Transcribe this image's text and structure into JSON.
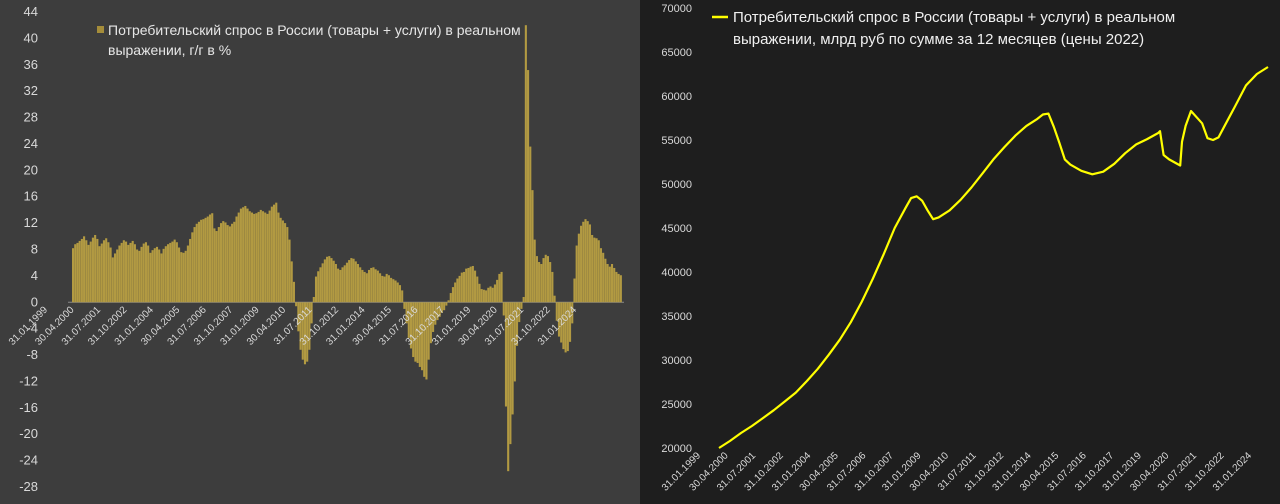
{
  "chart_data": [
    {
      "type": "bar",
      "legend": [
        "Потребительский спрос в России (товары + услуги) в реальном",
        "выражении, г/г в %"
      ],
      "legend_position": "top-left",
      "ylim": [
        -28,
        44
      ],
      "y_ticks": [
        "44",
        "40",
        "36",
        "32",
        "28",
        "24",
        "20",
        "16",
        "12",
        "8",
        "4",
        "0",
        "-4",
        "-8",
        "-12",
        "-16",
        "-20",
        "-24",
        "-28"
      ],
      "x_ticks": [
        "31.01.1999",
        "30.04.2000",
        "31.07.2001",
        "31.10.2002",
        "31.01.2004",
        "30.04.2005",
        "31.07.2006",
        "31.10.2007",
        "31.01.2009",
        "30.04.2010",
        "31.07.2011",
        "31.10.2012",
        "31.01.2014",
        "30.04.2015",
        "31.07.2016",
        "31.10.2017",
        "31.01.2019",
        "30.04.2020",
        "31.07.2021",
        "31.10.2022",
        "31.01.2024"
      ],
      "grid": false,
      "colors": {
        "bar": "#a58d3a",
        "bar_fill": "#b29a42",
        "background": "#3d3d3d"
      },
      "series": [
        {
          "name": "Потребительский спрос в России (товары + услуги) в реальном выражении, г/г в %",
          "x_start": "2000-02",
          "frequency": "monthly",
          "values": [
            8.2,
            8.8,
            9.0,
            9.3,
            9.6,
            10.0,
            9.4,
            8.7,
            9.2,
            9.8,
            10.2,
            9.6,
            8.5,
            8.9,
            9.4,
            9.7,
            9.1,
            8.3,
            6.8,
            7.4,
            8.0,
            8.6,
            9.0,
            9.4,
            9.2,
            8.7,
            9.0,
            9.3,
            8.8,
            8.0,
            7.8,
            8.4,
            8.9,
            9.1,
            8.6,
            7.5,
            7.9,
            8.2,
            8.4,
            8.0,
            7.4,
            8.1,
            8.5,
            8.8,
            9.0,
            9.2,
            9.5,
            9.1,
            8.3,
            7.6,
            7.5,
            7.8,
            8.6,
            9.6,
            10.6,
            11.4,
            11.9,
            12.2,
            12.5,
            12.6,
            12.8,
            13.0,
            13.3,
            13.5,
            11.2,
            10.8,
            11.4,
            12.0,
            12.3,
            12.1,
            11.7,
            11.5,
            11.9,
            12.2,
            13.0,
            13.6,
            14.2,
            14.4,
            14.6,
            14.2,
            13.8,
            13.6,
            13.4,
            13.5,
            13.7,
            14.0,
            13.8,
            13.6,
            13.4,
            13.9,
            14.5,
            14.8,
            15.1,
            13.6,
            12.8,
            12.4,
            12.0,
            11.4,
            9.5,
            6.2,
            3.1,
            -0.6,
            -4.4,
            -7.2,
            -8.7,
            -9.4,
            -9.0,
            -7.2,
            -3.2,
            0.8,
            3.9,
            4.7,
            5.3,
            5.9,
            6.5,
            6.9,
            7.0,
            6.7,
            6.3,
            5.8,
            5.1,
            4.9,
            5.3,
            5.6,
            6.0,
            6.4,
            6.7,
            6.6,
            6.2,
            5.8,
            5.3,
            4.9,
            4.6,
            4.4,
            4.9,
            5.2,
            5.3,
            5.0,
            4.8,
            4.4,
            4.0,
            3.9,
            4.3,
            4.1,
            3.7,
            3.5,
            3.3,
            3.0,
            2.6,
            1.8,
            -1.0,
            -3.2,
            -5.4,
            -7.0,
            -8.3,
            -9.0,
            -9.2,
            -9.8,
            -10.3,
            -11.3,
            -11.7,
            -8.7,
            -6.2,
            -4.5,
            -3.4,
            -2.7,
            -2.2,
            -1.6,
            -1.2,
            -0.5,
            0.3,
            1.4,
            2.3,
            3.0,
            3.6,
            4.0,
            4.5,
            4.6,
            5.1,
            5.2,
            5.4,
            5.5,
            4.8,
            3.9,
            2.8,
            2.0,
            1.9,
            1.8,
            2.2,
            2.4,
            2.2,
            2.7,
            3.4,
            4.3,
            4.6,
            -2.0,
            -15.8,
            -25.6,
            -21.5,
            -17.0,
            -12.0,
            -6.6,
            -3.0,
            -1.0,
            0.8,
            42.0,
            35.2,
            23.6,
            17.0,
            9.5,
            7.0,
            6.1,
            5.8,
            6.7,
            7.2,
            7.0,
            6.1,
            4.6,
            1.0,
            -2.8,
            -5.2,
            -6.1,
            -7.1,
            -7.6,
            -7.4,
            -6.0,
            -3.2,
            3.6,
            8.6,
            10.4,
            11.6,
            12.2,
            12.6,
            12.3,
            11.8,
            10.2,
            9.8,
            9.7,
            9.4,
            8.2,
            7.5,
            6.6,
            5.8,
            5.4,
            5.8,
            5.2,
            4.6,
            4.3,
            4.1
          ]
        }
      ]
    },
    {
      "type": "line",
      "legend": [
        "Потребительский спрос в России (товары + услуги) в реальном",
        "выражении, млрд руб по сумме за 12 месяцев (цены 2022)"
      ],
      "legend_position": "top-left",
      "ylim": [
        20000,
        70000
      ],
      "y_ticks": [
        "70000",
        "65000",
        "60000",
        "55000",
        "50000",
        "45000",
        "40000",
        "35000",
        "30000",
        "25000",
        "20000"
      ],
      "x_ticks": [
        "31.01.1999",
        "30.04.2000",
        "31.07.2001",
        "31.10.2002",
        "31.01.2004",
        "30.04.2005",
        "31.07.2006",
        "31.10.2007",
        "31.01.2009",
        "30.04.2010",
        "31.07.2011",
        "31.10.2012",
        "31.01.2014",
        "30.04.2015",
        "31.07.2016",
        "31.10.2017",
        "31.01.2019",
        "30.04.2020",
        "31.07.2021",
        "31.10.2022",
        "31.01.2024"
      ],
      "grid": false,
      "colors": {
        "line": "#ffff00",
        "background": "#1e1e1e"
      },
      "series": [
        {
          "name": "Потребительский спрос в России (товары + услуги) в реальном выражении, млрд руб по сумме за 12 месяцев (цены 2022)",
          "x": [
            "2000-01",
            "2000-07",
            "2001-01",
            "2001-07",
            "2002-01",
            "2002-07",
            "2003-01",
            "2003-07",
            "2004-01",
            "2004-07",
            "2005-01",
            "2005-07",
            "2006-01",
            "2006-07",
            "2007-01",
            "2007-07",
            "2008-01",
            "2008-07",
            "2008-10",
            "2009-01",
            "2009-04",
            "2009-07",
            "2009-10",
            "2010-01",
            "2010-07",
            "2011-01",
            "2011-07",
            "2012-01",
            "2012-07",
            "2013-01",
            "2013-07",
            "2014-01",
            "2014-07",
            "2014-10",
            "2015-01",
            "2015-04",
            "2015-07",
            "2015-10",
            "2016-01",
            "2016-07",
            "2017-01",
            "2017-07",
            "2018-01",
            "2018-07",
            "2019-01",
            "2019-07",
            "2020-01",
            "2020-02",
            "2020-04",
            "2020-07",
            "2021-01",
            "2021-02",
            "2021-04",
            "2021-07",
            "2022-01",
            "2022-04",
            "2022-07",
            "2022-10",
            "2023-01",
            "2023-07",
            "2024-01",
            "2024-07",
            "2025-01"
          ],
          "values": [
            20000,
            20800,
            21700,
            22500,
            23400,
            24300,
            25300,
            26300,
            27600,
            29000,
            30600,
            32300,
            34300,
            36600,
            39200,
            42000,
            45000,
            47300,
            48400,
            48600,
            48100,
            47000,
            46000,
            46200,
            47000,
            48200,
            49600,
            51200,
            52800,
            54200,
            55500,
            56600,
            57400,
            57900,
            58000,
            56500,
            54700,
            52800,
            52200,
            51500,
            51100,
            51400,
            52300,
            53500,
            54500,
            55100,
            55800,
            56000,
            53300,
            52800,
            52100,
            54800,
            56600,
            58300,
            56900,
            55200,
            55000,
            55300,
            56500,
            58800,
            61200,
            62500,
            63300
          ]
        }
      ]
    }
  ]
}
